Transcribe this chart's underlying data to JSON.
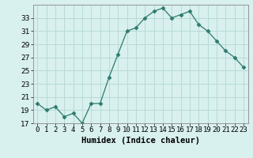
{
  "x": [
    0,
    1,
    2,
    3,
    4,
    5,
    6,
    7,
    8,
    9,
    10,
    11,
    12,
    13,
    14,
    15,
    16,
    17,
    18,
    19,
    20,
    21,
    22,
    23
  ],
  "y": [
    20.0,
    19.0,
    19.5,
    18.0,
    18.5,
    17.0,
    20.0,
    20.0,
    24.0,
    27.5,
    31.0,
    31.5,
    33.0,
    34.0,
    34.5,
    33.0,
    33.5,
    34.0,
    32.0,
    31.0,
    29.5,
    28.0,
    27.0,
    25.5
  ],
  "line_color": "#2d7a6e",
  "marker": "D",
  "marker_size": 2.5,
  "bg_color": "#d8f0ee",
  "grid_color": "#b8dbd8",
  "xlabel": "Humidex (Indice chaleur)",
  "ylim": [
    17,
    35
  ],
  "xlim": [
    -0.5,
    23.5
  ],
  "yticks": [
    17,
    19,
    21,
    23,
    25,
    27,
    29,
    31,
    33
  ],
  "xtick_labels": [
    "0",
    "1",
    "2",
    "3",
    "4",
    "5",
    "6",
    "7",
    "8",
    "9",
    "10",
    "11",
    "12",
    "13",
    "14",
    "15",
    "16",
    "17",
    "18",
    "19",
    "20",
    "21",
    "22",
    "23"
  ],
  "label_fontsize": 7.5,
  "tick_fontsize": 6.5
}
